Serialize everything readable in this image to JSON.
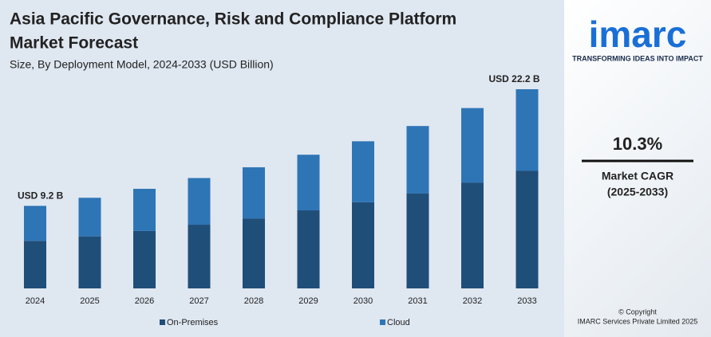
{
  "chart_data": {
    "type": "stacked_bar",
    "title": "Asia Pacific Governance, Risk and Compliance Platform Market Forecast",
    "subtitle": "Size, By Deployment Model, 2024-2033 (USD Billion)",
    "categories": [
      "2024",
      "2025",
      "2026",
      "2027",
      "2028",
      "2029",
      "2030",
      "2031",
      "2032",
      "2033"
    ],
    "series": [
      {
        "name": "On-Premises",
        "color": "#1f4e79",
        "values": [
          5.3,
          5.8,
          6.4,
          7.1,
          7.8,
          8.7,
          9.6,
          10.6,
          11.8,
          13.1
        ]
      },
      {
        "name": "Cloud",
        "color": "#2e75b6",
        "values": [
          3.9,
          4.3,
          4.7,
          5.2,
          5.7,
          6.2,
          6.8,
          7.5,
          8.3,
          9.1
        ]
      }
    ],
    "annotations": [
      "USD 9.2 B",
      "USD 22.2 B"
    ]
  },
  "sidebar": {
    "logo": "imarc",
    "tagline": "TRANSFORMING IDEAS INTO IMPACT",
    "cagr": "10.3%",
    "cagr_label": "Market CAGR",
    "cagr_period": "(2025-2033)",
    "copyright": "© Copyright",
    "company": "IMARC Services Private Limited 2025"
  }
}
